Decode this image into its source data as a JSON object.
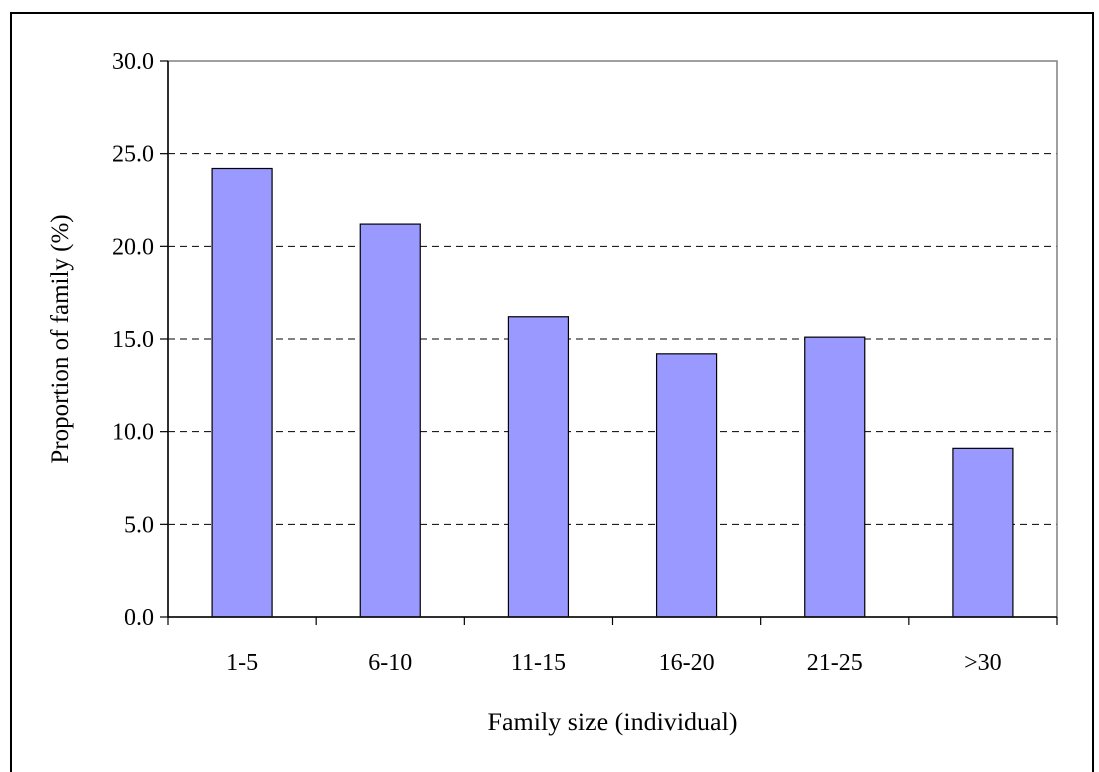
{
  "chart_data": {
    "type": "bar",
    "categories": [
      "1-5",
      "6-10",
      "11-15",
      "16-20",
      "21-25",
      ">30"
    ],
    "values": [
      24.2,
      21.2,
      16.2,
      14.2,
      15.1,
      9.1
    ],
    "xlabel": "Family size (individual)",
    "ylabel": "Proportion of family (%)",
    "ylim": [
      0,
      30
    ],
    "yticks": [
      "0.0",
      "5.0",
      "10.0",
      "15.0",
      "20.0",
      "25.0",
      "30.0"
    ],
    "grid": true,
    "bar_color": "#9999ff",
    "bar_border": "#000000"
  }
}
